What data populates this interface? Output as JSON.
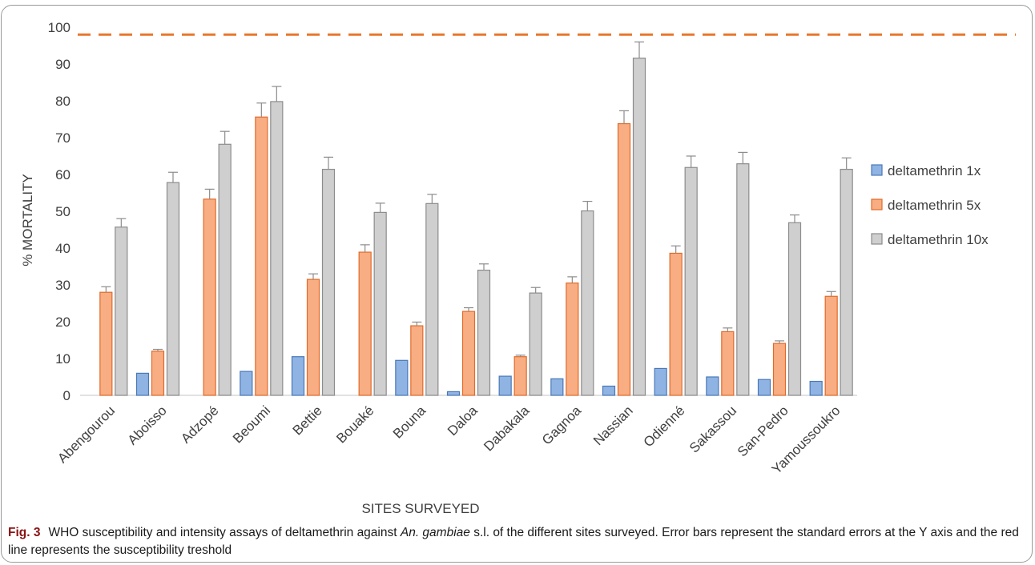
{
  "caption": {
    "label": "Fig. 3",
    "text_before": "WHO susceptibility and intensity assays of deltamethrin against",
    "species": "An. gambiae",
    "text_after": "s.l. of the different sites surveyed. Error bars represent the standard errors at the Y axis and the red line represents the susceptibility treshold"
  },
  "chart_data": {
    "type": "bar",
    "xlabel": "SITES SURVEYED",
    "ylabel": "% MORTALITY",
    "ylim": [
      0,
      100
    ],
    "yticks": [
      0,
      10,
      20,
      30,
      40,
      50,
      60,
      70,
      80,
      90,
      100
    ],
    "threshold": 98,
    "categories": [
      "Abengourou",
      "Aboisso",
      "Adzopé",
      "Beoumi",
      "Bettie",
      "Bouaké",
      "Bouna",
      "Daloa",
      "Dabakala",
      "Gagnoa",
      "Nassian",
      "Odienné",
      "Sakassou",
      "San-Pedro",
      "Yamoussoukro"
    ],
    "series": [
      {
        "name": "deltamethrin 1x",
        "color": "#8fb4e3",
        "edge": "#4a78b8",
        "values": [
          0,
          6,
          0,
          6.5,
          10.5,
          0,
          9.5,
          1,
          5.2,
          4.5,
          2.5,
          7.3,
          5,
          4.3,
          3.8
        ],
        "errors": [
          0,
          0,
          0,
          0,
          0,
          0,
          0,
          0,
          0,
          0,
          0,
          0,
          0,
          0,
          0
        ]
      },
      {
        "name": "deltamethrin 5x",
        "color": "#f8ad82",
        "edge": "#e06b2a",
        "values": [
          28,
          12,
          53.3,
          75.6,
          31.5,
          38.9,
          18.9,
          22.8,
          10.5,
          30.5,
          73.8,
          38.6,
          17.3,
          14.1,
          26.9
        ],
        "errors": [
          1.5,
          0.5,
          2.7,
          3.8,
          1.5,
          2,
          1,
          1,
          0.4,
          1.7,
          3.5,
          2,
          1,
          0.7,
          1.3
        ]
      },
      {
        "name": "deltamethrin 10x",
        "color": "#cfcfcf",
        "edge": "#8c8c8c",
        "values": [
          45.7,
          57.8,
          68.2,
          79.8,
          61.4,
          49.7,
          52.1,
          34,
          27.8,
          50.1,
          91.6,
          61.9,
          62.9,
          46.9,
          61.4
        ],
        "errors": [
          2.3,
          2.8,
          3.5,
          4.1,
          3.3,
          2.5,
          2.5,
          1.7,
          1.5,
          2.6,
          4.4,
          3.1,
          3.1,
          2.1,
          3.1
        ]
      }
    ]
  }
}
